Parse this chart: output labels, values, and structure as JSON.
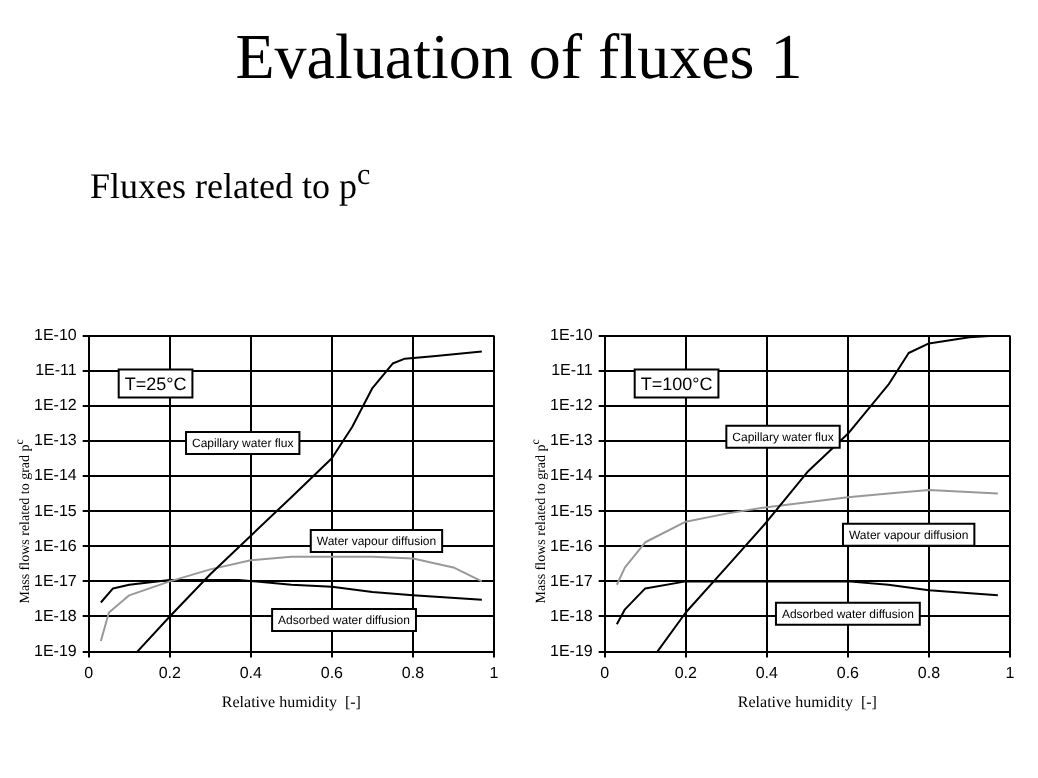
{
  "chart_data": [
    {
      "type": "line",
      "title": "Evaluation of fluxes 1",
      "subtitle": "Fluxes related to p$^{c}$",
      "xlabel": "Relative humidity  [-]",
      "ylabel": "Mass flows related to grad p$^{c}$",
      "log": "y",
      "grid": true,
      "legend": false,
      "marker": "none",
      "line_style": "solid",
      "xlim": [
        0,
        1
      ],
      "xticks": [
        0,
        0.2,
        0.4,
        0.6,
        0.8,
        1
      ],
      "ylim": [
        1e-19,
        1e-10
      ],
      "yticks": [
        {
          "value": 1e-19,
          "label": "1E-19"
        },
        {
          "value": 1e-18,
          "label": "1E-18"
        },
        {
          "value": 1e-17,
          "label": "1E-17"
        },
        {
          "value": 1e-16,
          "label": "1E-16"
        },
        {
          "value": 1e-15,
          "label": "1E-15"
        },
        {
          "value": 1e-14,
          "label": "1E-14"
        },
        {
          "value": 1e-13,
          "label": "1E-13"
        },
        {
          "value": 1e-12,
          "label": "1E-12"
        },
        {
          "value": 1e-11,
          "label": "1E-11"
        },
        {
          "value": 1e-10,
          "label": "1E-10"
        }
      ],
      "series": [
        {
          "name": "Capillary water flux",
          "color": "#000000",
          "x": [
            0.12,
            0.2,
            0.3,
            0.4,
            0.5,
            0.6,
            0.65,
            0.7,
            0.75,
            0.78,
            0.85,
            0.97
          ],
          "values": [
            1e-19,
            1e-18,
            1.6e-17,
            2e-16,
            2.5e-15,
            3.2e-14,
            2.5e-13,
            3.2e-12,
            1.6e-11,
            2.2e-11,
            2.6e-11,
            3.5e-11
          ]
        },
        {
          "name": "Water vapour diffusion",
          "color": "#999999",
          "x": [
            0.03,
            0.05,
            0.1,
            0.2,
            0.3,
            0.4,
            0.5,
            0.6,
            0.7,
            0.8,
            0.9,
            0.97
          ],
          "values": [
            2e-19,
            1.3e-18,
            4e-18,
            1e-17,
            2.2e-17,
            4e-17,
            5e-17,
            5e-17,
            5e-17,
            4.5e-17,
            2.5e-17,
            1e-17
          ]
        },
        {
          "name": "Adsorbed water diffusion",
          "color": "#000000",
          "x": [
            0.03,
            0.06,
            0.1,
            0.2,
            0.3,
            0.37,
            0.5,
            0.6,
            0.7,
            0.8,
            0.97
          ],
          "values": [
            2.5e-18,
            6.3e-18,
            8e-18,
            1.1e-17,
            1.1e-17,
            1.1e-17,
            8e-18,
            7e-18,
            5e-18,
            4e-18,
            3e-18
          ]
        }
      ],
      "annotations": [
        "T=25°C"
      ]
    },
    {
      "type": "line",
      "xlabel": "Relative humidity  [-]",
      "ylabel": "Mass flows related to grad p$^{c}$",
      "log": "y",
      "grid": true,
      "legend": false,
      "marker": "none",
      "line_style": "solid",
      "xlim": [
        0,
        1
      ],
      "xticks": [
        0,
        0.2,
        0.4,
        0.6,
        0.8,
        1
      ],
      "ylim": [
        1e-19,
        1e-10
      ],
      "yticks": [
        {
          "value": 1e-19,
          "label": "1E-19"
        },
        {
          "value": 1e-18,
          "label": "1E-18"
        },
        {
          "value": 1e-17,
          "label": "1E-17"
        },
        {
          "value": 1e-16,
          "label": "1E-16"
        },
        {
          "value": 1e-15,
          "label": "1E-15"
        },
        {
          "value": 1e-14,
          "label": "1E-14"
        },
        {
          "value": 1e-13,
          "label": "1E-13"
        },
        {
          "value": 1e-12,
          "label": "1E-12"
        },
        {
          "value": 1e-11,
          "label": "1E-11"
        },
        {
          "value": 1e-10,
          "label": "1E-10"
        }
      ],
      "series": [
        {
          "name": "Capillary water flux",
          "color": "#000000",
          "x": [
            0.13,
            0.2,
            0.3,
            0.4,
            0.5,
            0.6,
            0.7,
            0.75,
            0.8,
            0.9,
            0.97
          ],
          "values": [
            1e-19,
            1.3e-18,
            2.5e-17,
            5e-16,
            1.3e-14,
            1.6e-13,
            4e-12,
            3.2e-11,
            6e-11,
            9e-11,
            1e-10
          ]
        },
        {
          "name": "Water vapour diffusion",
          "color": "#999999",
          "x": [
            0.03,
            0.05,
            0.1,
            0.2,
            0.3,
            0.4,
            0.5,
            0.6,
            0.7,
            0.8,
            0.97
          ],
          "values": [
            8e-18,
            2.5e-17,
            1.3e-16,
            5e-16,
            8.5e-16,
            1.3e-15,
            1.8e-15,
            2.5e-15,
            3.2e-15,
            4e-15,
            3.2e-15
          ]
        },
        {
          "name": "Adsorbed water diffusion",
          "color": "#000000",
          "x": [
            0.03,
            0.05,
            0.1,
            0.2,
            0.25,
            0.6,
            0.7,
            0.8,
            0.97
          ],
          "values": [
            6e-19,
            1.6e-18,
            6.3e-18,
            1e-17,
            1e-17,
            1e-17,
            8e-18,
            5.6e-18,
            4e-18
          ]
        }
      ],
      "annotations": [
        "T=100°C"
      ]
    }
  ]
}
